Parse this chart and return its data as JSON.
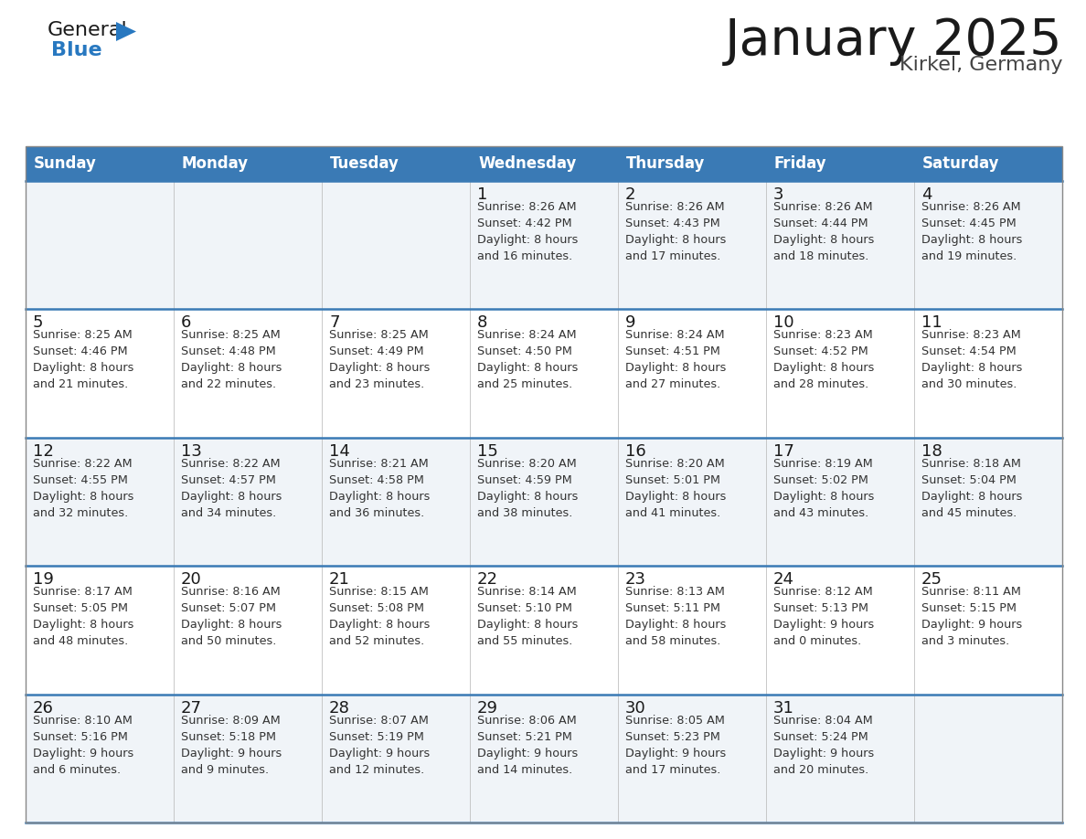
{
  "title": "January 2025",
  "subtitle": "Kirkel, Germany",
  "header_bg": "#3a7ab5",
  "header_text_color": "#ffffff",
  "weekdays": [
    "Sunday",
    "Monday",
    "Tuesday",
    "Wednesday",
    "Thursday",
    "Friday",
    "Saturday"
  ],
  "row_bg_odd": "#f0f4f8",
  "row_bg_even": "#ffffff",
  "cell_border_color": "#3a7ab5",
  "logo_color_general": "#1a1a1a",
  "logo_color_blue": "#2878c0",
  "weeks": [
    {
      "days": [
        {
          "day": null,
          "info": null
        },
        {
          "day": null,
          "info": null
        },
        {
          "day": null,
          "info": null
        },
        {
          "day": 1,
          "info": "Sunrise: 8:26 AM\nSunset: 4:42 PM\nDaylight: 8 hours\nand 16 minutes."
        },
        {
          "day": 2,
          "info": "Sunrise: 8:26 AM\nSunset: 4:43 PM\nDaylight: 8 hours\nand 17 minutes."
        },
        {
          "day": 3,
          "info": "Sunrise: 8:26 AM\nSunset: 4:44 PM\nDaylight: 8 hours\nand 18 minutes."
        },
        {
          "day": 4,
          "info": "Sunrise: 8:26 AM\nSunset: 4:45 PM\nDaylight: 8 hours\nand 19 minutes."
        }
      ]
    },
    {
      "days": [
        {
          "day": 5,
          "info": "Sunrise: 8:25 AM\nSunset: 4:46 PM\nDaylight: 8 hours\nand 21 minutes."
        },
        {
          "day": 6,
          "info": "Sunrise: 8:25 AM\nSunset: 4:48 PM\nDaylight: 8 hours\nand 22 minutes."
        },
        {
          "day": 7,
          "info": "Sunrise: 8:25 AM\nSunset: 4:49 PM\nDaylight: 8 hours\nand 23 minutes."
        },
        {
          "day": 8,
          "info": "Sunrise: 8:24 AM\nSunset: 4:50 PM\nDaylight: 8 hours\nand 25 minutes."
        },
        {
          "day": 9,
          "info": "Sunrise: 8:24 AM\nSunset: 4:51 PM\nDaylight: 8 hours\nand 27 minutes."
        },
        {
          "day": 10,
          "info": "Sunrise: 8:23 AM\nSunset: 4:52 PM\nDaylight: 8 hours\nand 28 minutes."
        },
        {
          "day": 11,
          "info": "Sunrise: 8:23 AM\nSunset: 4:54 PM\nDaylight: 8 hours\nand 30 minutes."
        }
      ]
    },
    {
      "days": [
        {
          "day": 12,
          "info": "Sunrise: 8:22 AM\nSunset: 4:55 PM\nDaylight: 8 hours\nand 32 minutes."
        },
        {
          "day": 13,
          "info": "Sunrise: 8:22 AM\nSunset: 4:57 PM\nDaylight: 8 hours\nand 34 minutes."
        },
        {
          "day": 14,
          "info": "Sunrise: 8:21 AM\nSunset: 4:58 PM\nDaylight: 8 hours\nand 36 minutes."
        },
        {
          "day": 15,
          "info": "Sunrise: 8:20 AM\nSunset: 4:59 PM\nDaylight: 8 hours\nand 38 minutes."
        },
        {
          "day": 16,
          "info": "Sunrise: 8:20 AM\nSunset: 5:01 PM\nDaylight: 8 hours\nand 41 minutes."
        },
        {
          "day": 17,
          "info": "Sunrise: 8:19 AM\nSunset: 5:02 PM\nDaylight: 8 hours\nand 43 minutes."
        },
        {
          "day": 18,
          "info": "Sunrise: 8:18 AM\nSunset: 5:04 PM\nDaylight: 8 hours\nand 45 minutes."
        }
      ]
    },
    {
      "days": [
        {
          "day": 19,
          "info": "Sunrise: 8:17 AM\nSunset: 5:05 PM\nDaylight: 8 hours\nand 48 minutes."
        },
        {
          "day": 20,
          "info": "Sunrise: 8:16 AM\nSunset: 5:07 PM\nDaylight: 8 hours\nand 50 minutes."
        },
        {
          "day": 21,
          "info": "Sunrise: 8:15 AM\nSunset: 5:08 PM\nDaylight: 8 hours\nand 52 minutes."
        },
        {
          "day": 22,
          "info": "Sunrise: 8:14 AM\nSunset: 5:10 PM\nDaylight: 8 hours\nand 55 minutes."
        },
        {
          "day": 23,
          "info": "Sunrise: 8:13 AM\nSunset: 5:11 PM\nDaylight: 8 hours\nand 58 minutes."
        },
        {
          "day": 24,
          "info": "Sunrise: 8:12 AM\nSunset: 5:13 PM\nDaylight: 9 hours\nand 0 minutes."
        },
        {
          "day": 25,
          "info": "Sunrise: 8:11 AM\nSunset: 5:15 PM\nDaylight: 9 hours\nand 3 minutes."
        }
      ]
    },
    {
      "days": [
        {
          "day": 26,
          "info": "Sunrise: 8:10 AM\nSunset: 5:16 PM\nDaylight: 9 hours\nand 6 minutes."
        },
        {
          "day": 27,
          "info": "Sunrise: 8:09 AM\nSunset: 5:18 PM\nDaylight: 9 hours\nand 9 minutes."
        },
        {
          "day": 28,
          "info": "Sunrise: 8:07 AM\nSunset: 5:19 PM\nDaylight: 9 hours\nand 12 minutes."
        },
        {
          "day": 29,
          "info": "Sunrise: 8:06 AM\nSunset: 5:21 PM\nDaylight: 9 hours\nand 14 minutes."
        },
        {
          "day": 30,
          "info": "Sunrise: 8:05 AM\nSunset: 5:23 PM\nDaylight: 9 hours\nand 17 minutes."
        },
        {
          "day": 31,
          "info": "Sunrise: 8:04 AM\nSunset: 5:24 PM\nDaylight: 9 hours\nand 20 minutes."
        },
        {
          "day": null,
          "info": null
        }
      ]
    }
  ]
}
